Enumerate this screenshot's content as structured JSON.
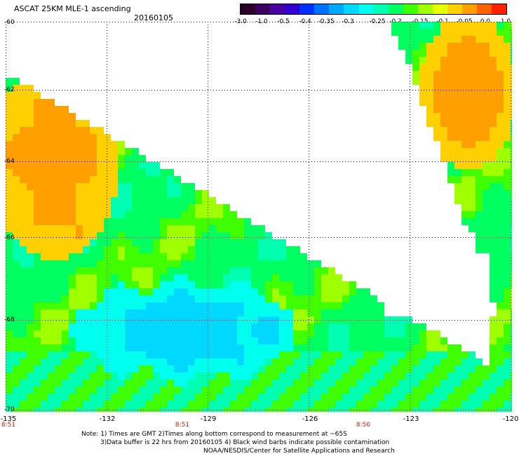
{
  "header": {
    "title": "ASCAT 25KM MLE-1 ascending",
    "date": "20160105"
  },
  "colorbar": {
    "labels": [
      "-3.0",
      "-1.0",
      "-0.5",
      "-0.4",
      "-0.35",
      "-0.3",
      "-0.25",
      "-0.2",
      "-0.15",
      "-0.1",
      "-0.05",
      "0.0",
      "1.0"
    ],
    "colors": [
      "#2a002a",
      "#3a0060",
      "#4a00a0",
      "#3000d0",
      "#0030ff",
      "#0070ff",
      "#00a8ff",
      "#00d8ff",
      "#00ffee",
      "#00ffb0",
      "#00ff60",
      "#40ff00",
      "#a0ff00",
      "#e8ff00",
      "#ffd000",
      "#ffa000",
      "#ff6000",
      "#ff2000"
    ]
  },
  "map": {
    "lat_labels": [
      "-60",
      "-62",
      "-64",
      "-66",
      "-68",
      "-70"
    ],
    "lon_labels": [
      "-135",
      "-132",
      "-129",
      "-126",
      "-123",
      "-120"
    ],
    "time_labels": [
      "8:51",
      "8:51",
      "8:50"
    ]
  },
  "notes": {
    "line1": "Note: 1) Times are GMT 2)Times along bottom correspond to measurement at ~65S",
    "line2": "3)Data buffer is 22 hrs from 20160105 4) Black wind barbs indicate possible contamination",
    "line3": "NOAA/NESDIS/Center for Satellite Applications and Research"
  }
}
